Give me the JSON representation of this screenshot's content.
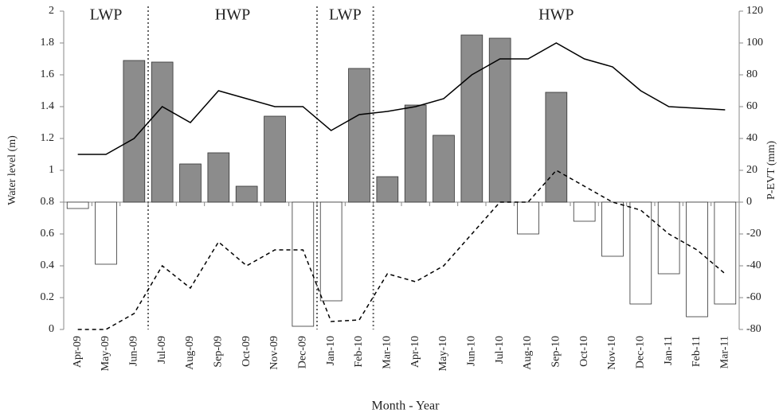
{
  "chart_data": {
    "type": "bar-line",
    "x_label": "Month - Year",
    "y_label": "Water level (m)",
    "y2_label": "P-EVT (mm)",
    "categories": [
      "Apr-09",
      "May-09",
      "Jun-09",
      "Jul-09",
      "Aug-09",
      "Sep-09",
      "Oct-09",
      "Nov-09",
      "Dec-09",
      "Jan-10",
      "Feb-10",
      "Mar-10",
      "Apr-10",
      "May-10",
      "Jun-10",
      "Jul-10",
      "Aug-10",
      "Sep-10",
      "Oct-10",
      "Nov-10",
      "Dec-10",
      "Jan-11",
      "Feb-11",
      "Mar-11"
    ],
    "series": [
      {
        "type": "bar",
        "axis": "y2",
        "color": "#8c8c8c",
        "negative_color": "#ffffff",
        "values": [
          -4,
          -39,
          89,
          88,
          24,
          31,
          10,
          54,
          -78,
          -62,
          84,
          16,
          61,
          42,
          105,
          103,
          -20,
          69,
          -12,
          -34,
          -64,
          -45,
          -72,
          -64
        ]
      },
      {
        "type": "line",
        "axis": "y",
        "color": "#000000",
        "dash": "solid",
        "values": [
          1.1,
          1.1,
          1.2,
          1.4,
          1.3,
          1.5,
          1.45,
          1.4,
          1.4,
          1.25,
          1.35,
          1.37,
          1.4,
          1.45,
          1.6,
          1.7,
          1.7,
          1.8,
          1.7,
          1.65,
          1.5,
          1.4,
          1.39,
          1.38
        ]
      },
      {
        "type": "line",
        "axis": "y",
        "color": "#000000",
        "dash": "dashed",
        "values": [
          0,
          0,
          0.1,
          0.4,
          0.26,
          0.55,
          0.4,
          0.5,
          0.5,
          0.05,
          0.06,
          0.35,
          0.3,
          0.4,
          0.6,
          0.8,
          0.8,
          1.0,
          0.9,
          0.8,
          0.75,
          0.6,
          0.5,
          0.35
        ]
      }
    ],
    "periods": [
      {
        "label": "LWP",
        "from": "Apr-09",
        "to": "Jun-09"
      },
      {
        "label": "HWP",
        "from": "Jul-09",
        "to": "Dec-09"
      },
      {
        "label": "LWP",
        "from": "Jan-10",
        "to": "Feb-10"
      },
      {
        "label": "HWP",
        "from": "Mar-10",
        "to": "Mar-11"
      }
    ],
    "ylim": [
      0,
      2
    ],
    "yticks": [
      0,
      0.2,
      0.4,
      0.6,
      0.8,
      1,
      1.2,
      1.4,
      1.6,
      1.8,
      2
    ],
    "y2lim": [
      -80,
      120
    ],
    "y2ticks": [
      -80,
      -60,
      -40,
      -20,
      0,
      20,
      40,
      60,
      80,
      100,
      120
    ],
    "grid": false
  }
}
